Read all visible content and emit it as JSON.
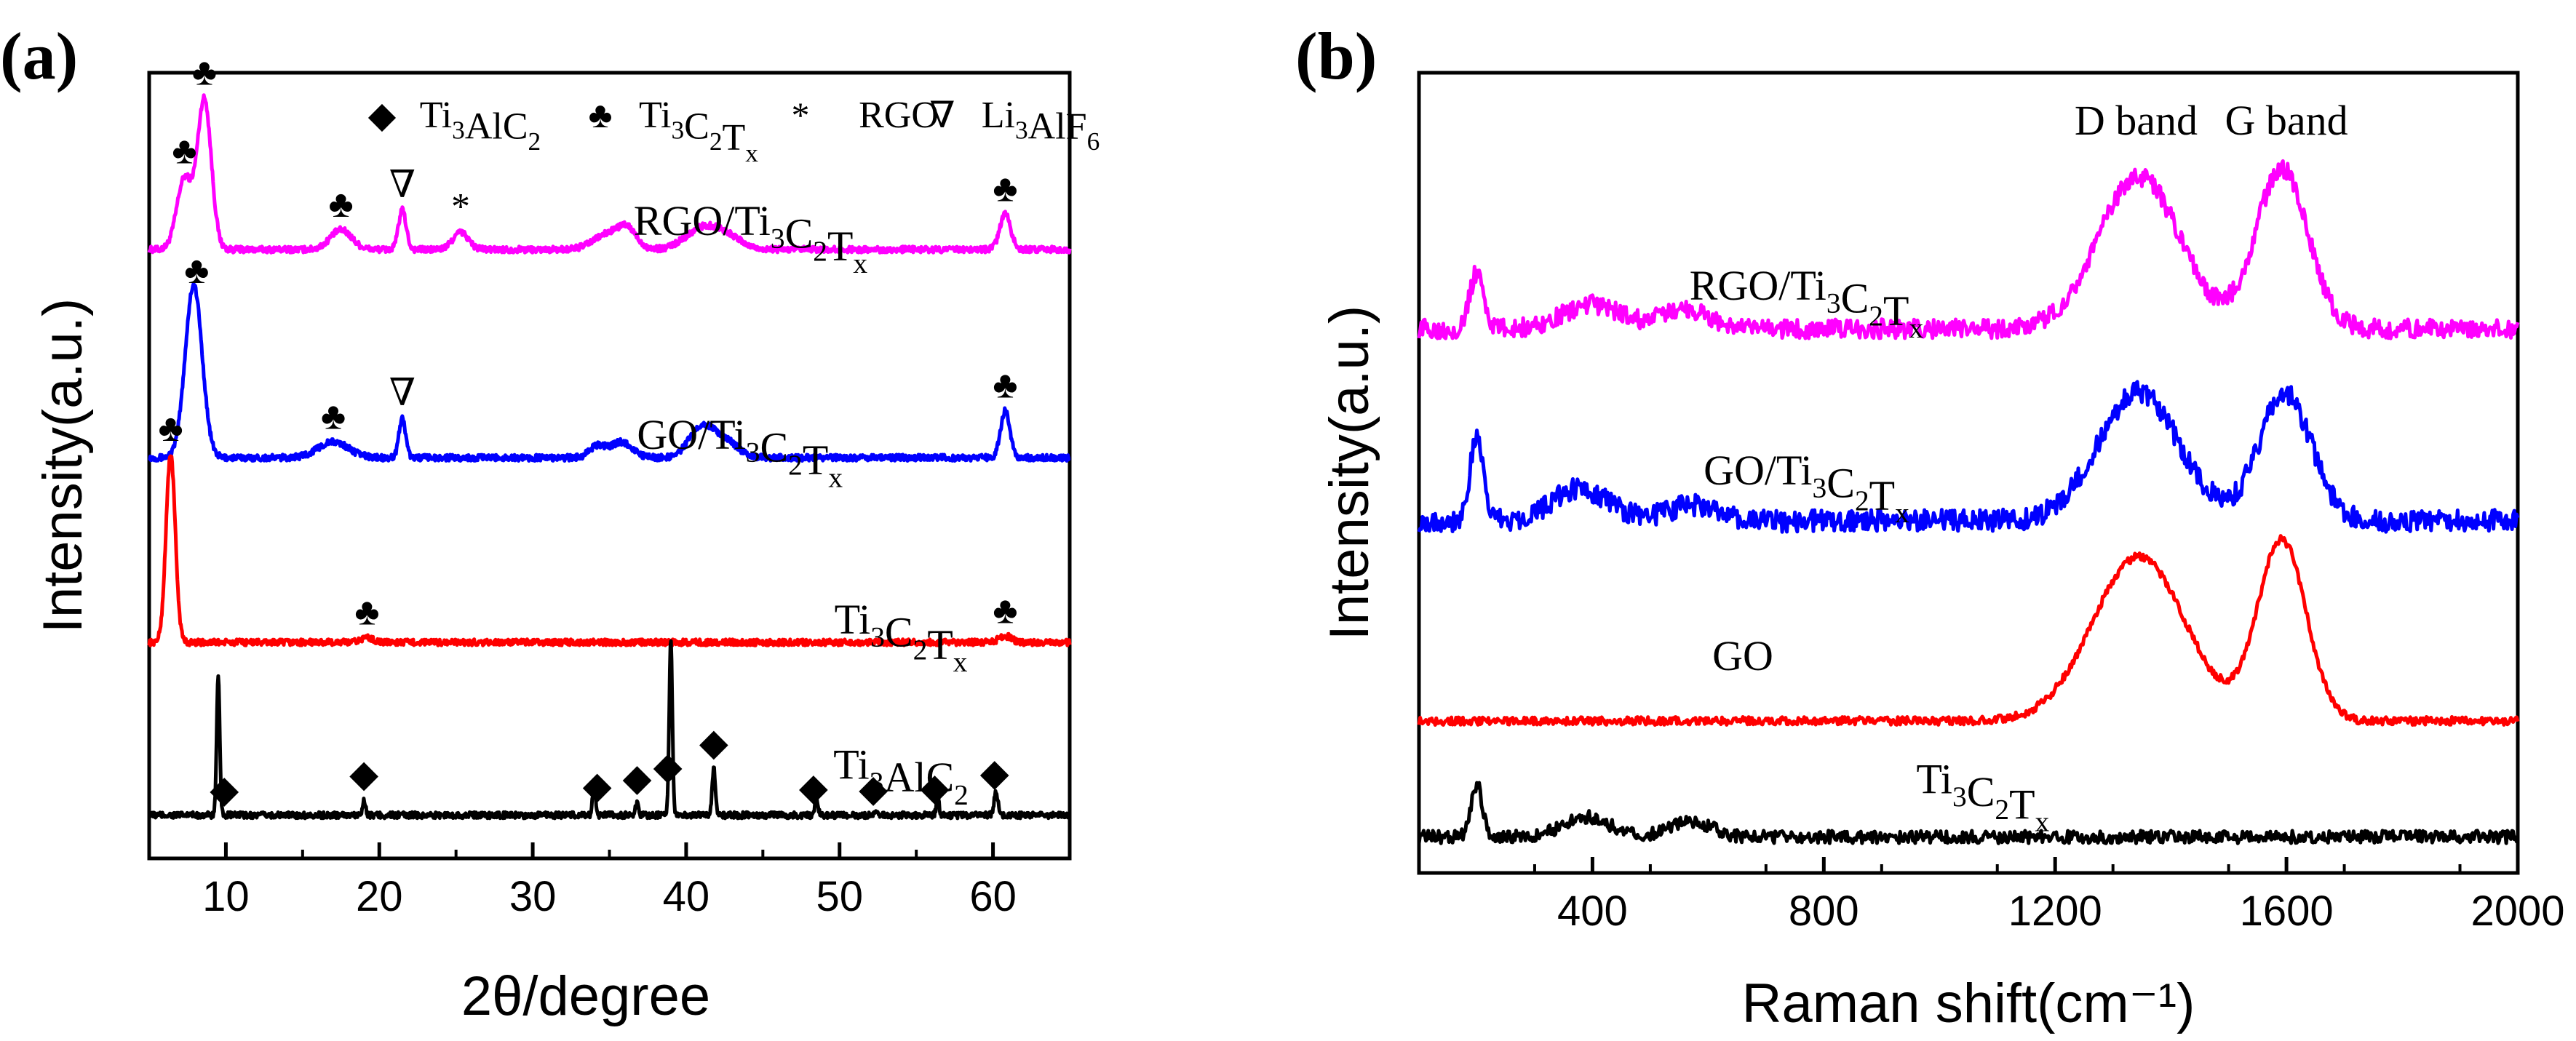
{
  "chart_data": [
    {
      "panel_label": "(a)",
      "type": "line",
      "xlabel": "2θ/degree",
      "ylabel": "Intensity(a.u.)",
      "xlim": [
        5,
        65
      ],
      "xticks": [
        10,
        20,
        30,
        40,
        50,
        60
      ],
      "xtick_labels": [
        "10",
        "20",
        "30",
        "40",
        "50",
        "60"
      ],
      "legend": [
        {
          "symbol": "◆",
          "label": "Ti3AlC2"
        },
        {
          "symbol": "♣",
          "label": "Ti3C2Tx"
        },
        {
          "symbol": "*",
          "label": "RGO"
        },
        {
          "symbol": "∇",
          "label": "Li3AlF6"
        }
      ],
      "series": [
        {
          "name": "RGO/Ti3C2Tx",
          "color": "#ff00ff",
          "label_x": 44.2,
          "baseline": 0.225,
          "peaks": [
            {
              "x": 7.3,
              "h": 0.09,
              "w": 0.5
            },
            {
              "x": 8.6,
              "h": 0.19,
              "w": 0.45
            },
            {
              "x": 17.5,
              "h": 0.025,
              "w": 0.7
            },
            {
              "x": 21.5,
              "h": 0.05,
              "w": 0.25
            },
            {
              "x": 25.3,
              "h": 0.022,
              "w": 0.5
            },
            {
              "x": 35.0,
              "h": 0.02,
              "w": 1.0
            },
            {
              "x": 36.2,
              "h": 0.02,
              "w": 0.6
            },
            {
              "x": 41.0,
              "h": 0.025,
              "w": 1.1
            },
            {
              "x": 42.6,
              "h": 0.015,
              "w": 1.0
            },
            {
              "x": 60.8,
              "h": 0.045,
              "w": 0.35
            }
          ],
          "markers": [
            {
              "x": 7.3,
              "symbol": "♣"
            },
            {
              "x": 8.6,
              "symbol": "♣"
            },
            {
              "x": 17.5,
              "symbol": "♣"
            },
            {
              "x": 21.5,
              "symbol": "∇"
            },
            {
              "x": 25.3,
              "symbol": "*"
            },
            {
              "x": 60.8,
              "symbol": "♣"
            }
          ]
        },
        {
          "name": "GO/Ti3C2Tx",
          "color": "#0000ff",
          "label_x": 43.5,
          "baseline": 0.49,
          "peaks": [
            {
              "x": 7.9,
              "h": 0.22,
              "w": 0.55
            },
            {
              "x": 17.0,
              "h": 0.02,
              "w": 1.0
            },
            {
              "x": 21.5,
              "h": 0.05,
              "w": 0.22
            },
            {
              "x": 34.2,
              "h": 0.015,
              "w": 0.5
            },
            {
              "x": 35.8,
              "h": 0.02,
              "w": 0.7
            },
            {
              "x": 41.0,
              "h": 0.04,
              "w": 0.8
            },
            {
              "x": 42.6,
              "h": 0.02,
              "w": 0.8
            },
            {
              "x": 60.8,
              "h": 0.06,
              "w": 0.3
            }
          ],
          "markers": [
            {
              "x": 8.1,
              "symbol": "♣"
            },
            {
              "x": 17.0,
              "symbol": "♣"
            },
            {
              "x": 21.5,
              "symbol": "∇"
            },
            {
              "x": 60.8,
              "symbol": "♣"
            }
          ]
        },
        {
          "name": "Ti3C2Tx",
          "color": "#ff0000",
          "label_x": 54.0,
          "baseline": 0.725,
          "peaks": [
            {
              "x": 6.4,
              "h": 0.24,
              "w": 0.3
            },
            {
              "x": 19.2,
              "h": 0.006,
              "w": 0.4
            },
            {
              "x": 60.8,
              "h": 0.008,
              "w": 0.4
            }
          ],
          "markers": [
            {
              "x": 6.4,
              "symbol": "♣"
            },
            {
              "x": 19.2,
              "symbol": "♣"
            },
            {
              "x": 60.8,
              "symbol": "♣"
            }
          ]
        },
        {
          "name": "Ti3AlC2",
          "color": "#000000",
          "label_x": 54.0,
          "baseline": 0.945,
          "peaks": [
            {
              "x": 9.5,
              "h": 0.175,
              "w": 0.1
            },
            {
              "x": 19.0,
              "h": 0.02,
              "w": 0.1
            },
            {
              "x": 34.0,
              "h": 0.04,
              "w": 0.1
            },
            {
              "x": 36.8,
              "h": 0.015,
              "w": 0.1
            },
            {
              "x": 39.0,
              "h": 0.22,
              "w": 0.1
            },
            {
              "x": 41.8,
              "h": 0.06,
              "w": 0.1
            },
            {
              "x": 48.5,
              "h": 0.02,
              "w": 0.1
            },
            {
              "x": 52.4,
              "h": 0.008,
              "w": 0.1
            },
            {
              "x": 56.4,
              "h": 0.02,
              "w": 0.1
            },
            {
              "x": 60.2,
              "h": 0.03,
              "w": 0.12
            }
          ],
          "markers": [
            {
              "x": 9.9,
              "symbol": "◆"
            },
            {
              "x": 19.0,
              "symbol": "◆"
            },
            {
              "x": 34.2,
              "symbol": "◆"
            },
            {
              "x": 36.8,
              "symbol": "◆"
            },
            {
              "x": 38.8,
              "symbol": "◆"
            },
            {
              "x": 41.8,
              "symbol": "◆"
            },
            {
              "x": 48.3,
              "symbol": "◆"
            },
            {
              "x": 52.2,
              "symbol": "◆"
            },
            {
              "x": 56.2,
              "symbol": "◆"
            },
            {
              "x": 60.1,
              "symbol": "◆"
            }
          ]
        }
      ]
    },
    {
      "panel_label": "(b)",
      "type": "line",
      "xlabel": "Raman shift(cm⁻¹)",
      "ylabel": "Intensity(a.u.)",
      "xlim": [
        100,
        2000
      ],
      "xticks": [
        400,
        800,
        1200,
        1600,
        2000
      ],
      "xtick_labels": [
        "400",
        "800",
        "1200",
        "1600",
        "2000"
      ],
      "annotations": [
        {
          "text": "D band",
          "x": 1340
        },
        {
          "text": "G band",
          "x": 1600
        }
      ],
      "series": [
        {
          "name": "RGO/Ti3C2Tx",
          "color": "#ff00ff",
          "label_x": 770,
          "baseline": 0.32,
          "peaks": [
            {
              "x": 200,
              "h": 0.07,
              "w": 12
            },
            {
              "x": 400,
              "h": 0.03,
              "w": 50
            },
            {
              "x": 560,
              "h": 0.025,
              "w": 40
            },
            {
              "x": 1345,
              "h": 0.19,
              "w": 70
            },
            {
              "x": 1592,
              "h": 0.2,
              "w": 45
            }
          ],
          "noise": 0.012
        },
        {
          "name": "GO/Ti3C2Tx",
          "color": "#0000ff",
          "label_x": 770,
          "baseline": 0.56,
          "peaks": [
            {
              "x": 200,
              "h": 0.1,
              "w": 12
            },
            {
              "x": 380,
              "h": 0.04,
              "w": 50
            },
            {
              "x": 570,
              "h": 0.02,
              "w": 40
            },
            {
              "x": 1345,
              "h": 0.16,
              "w": 70
            },
            {
              "x": 1598,
              "h": 0.16,
              "w": 45
            }
          ],
          "noise": 0.014
        },
        {
          "name": "GO",
          "color": "#ff0000",
          "label_x": 660,
          "baseline": 0.81,
          "peaks": [
            {
              "x": 1345,
              "h": 0.205,
              "w": 80
            },
            {
              "x": 1592,
              "h": 0.225,
              "w": 42
            }
          ],
          "noise": 0.005
        },
        {
          "name": "Ti3C2Tx",
          "color": "#000000",
          "label_x": 1075,
          "baseline": 0.955,
          "peaks": [
            {
              "x": 200,
              "h": 0.065,
              "w": 10
            },
            {
              "x": 390,
              "h": 0.025,
              "w": 40
            },
            {
              "x": 570,
              "h": 0.02,
              "w": 35
            }
          ],
          "noise": 0.008
        }
      ]
    }
  ]
}
